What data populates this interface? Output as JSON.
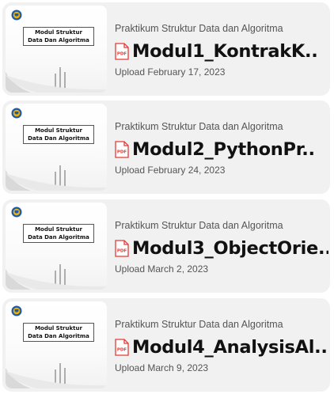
{
  "colors": {
    "card_background": "#f1f1f1",
    "pdf_red": "#e53935",
    "logo_blue": "#1e5aa8",
    "logo_gold": "#e8b00e"
  },
  "icons": {
    "logo": "university-logo-icon",
    "file": "pdf-file-icon"
  },
  "modules": [
    {
      "thumbnail_title_line1": "Modul Struktur",
      "thumbnail_title_line2": "Data Dan Algoritma",
      "category": "Praktikum Struktur Data dan Algoritma",
      "pdf_badge": "PDF",
      "title": "Modul1_KontrakK..",
      "upload": "Upload February 17, 2023"
    },
    {
      "thumbnail_title_line1": "Modul Struktur",
      "thumbnail_title_line2": "Data Dan Algoritma",
      "category": "Praktikum Struktur Data dan Algoritma",
      "pdf_badge": "PDF",
      "title": "Modul2_PythonPr..",
      "upload": "Upload February 24, 2023"
    },
    {
      "thumbnail_title_line1": "Modul Struktur",
      "thumbnail_title_line2": "Data Dan Algoritma",
      "category": "Praktikum Struktur Data dan Algoritma",
      "pdf_badge": "PDF",
      "title": "Modul3_ObjectOrie..",
      "upload": "Upload March 2, 2023"
    },
    {
      "thumbnail_title_line1": "Modul Struktur",
      "thumbnail_title_line2": "Data Dan Algoritma",
      "category": "Praktikum Struktur Data dan Algoritma",
      "pdf_badge": "PDF",
      "title": "Modul4_AnalysisAl...",
      "upload": "Upload March 9, 2023"
    }
  ]
}
